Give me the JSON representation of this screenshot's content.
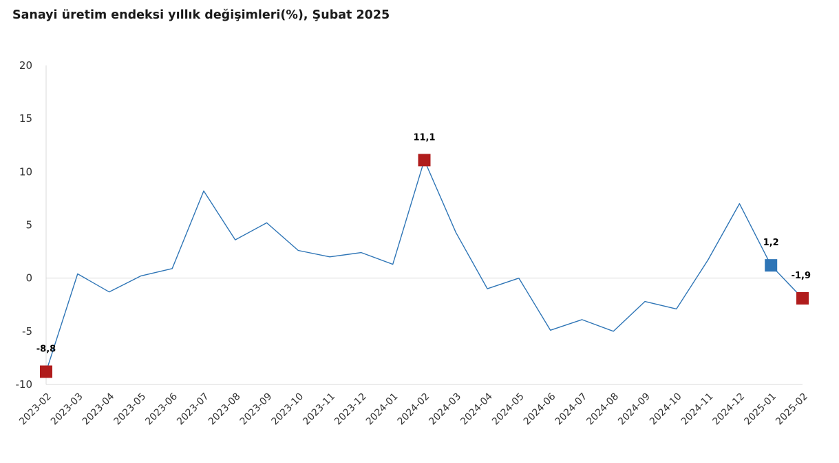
{
  "chart_data": {
    "type": "line",
    "title": "Sanayi üretim endeksi yıllık değişimleri(%), Şubat 2025",
    "xlabel": "",
    "ylabel": "",
    "ylim": [
      -10,
      20
    ],
    "yticks": [
      "20",
      "15",
      "10",
      "5",
      "0",
      "-5",
      "-10"
    ],
    "ytick_values": [
      20,
      15,
      10,
      5,
      0,
      -5,
      -10
    ],
    "grid": false,
    "legend": "none",
    "x": [
      "2023-02",
      "2023-03",
      "2023-04",
      "2023-05",
      "2023-06",
      "2023-07",
      "2023-08",
      "2023-09",
      "2023-10",
      "2023-11",
      "2023-12",
      "2024-01",
      "2024-02",
      "2024-03",
      "2024-04",
      "2024-05",
      "2024-06",
      "2024-07",
      "2024-08",
      "2024-09",
      "2024-10",
      "2024-11",
      "2024-12",
      "2025-01",
      "2025-02"
    ],
    "series": [
      {
        "values": [
          -8.8,
          0.4,
          -1.3,
          0.2,
          0.9,
          8.2,
          3.6,
          5.2,
          2.6,
          2.0,
          2.4,
          1.3,
          11.1,
          4.3,
          -1.0,
          0.0,
          -4.9,
          -3.9,
          -5.0,
          -2.2,
          -2.9,
          1.7,
          7.0,
          1.2,
          -1.9
        ],
        "color": "#2e75b6"
      }
    ],
    "highlights": [
      {
        "x": "2023-02",
        "value": -8.8,
        "label": "-8,8",
        "color": "#b01c1c"
      },
      {
        "x": "2024-02",
        "value": 11.1,
        "label": "11,1",
        "color": "#b01c1c"
      },
      {
        "x": "2025-01",
        "value": 1.2,
        "label": "1,2",
        "color": "#2e75b6"
      },
      {
        "x": "2025-02",
        "value": -1.9,
        "label": "-1,9",
        "color": "#b01c1c"
      }
    ],
    "zero_line_color": "#d9d9d9",
    "axis_color": "#d9d9d9"
  }
}
